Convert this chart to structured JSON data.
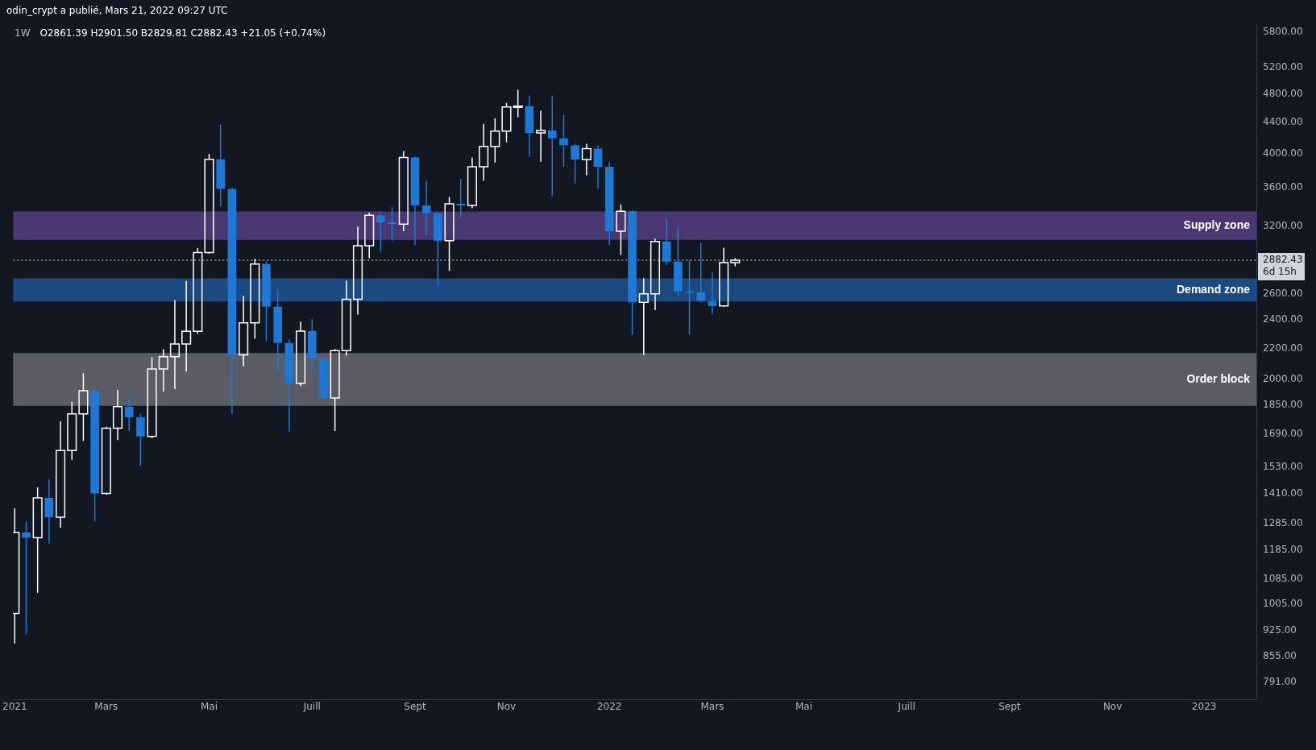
{
  "chart_data": {
    "type": "candlestick",
    "title": "1W",
    "subtitle": "O2861.39 H2901.50 B2829.81 C2882.43 +21.05 (+0.74%)",
    "annotations": [
      "odin_crypt a publié, Mars 21, 2022 09:27 UTC",
      "6d 15h"
    ],
    "x": [
      "2021-01-04",
      "2021-01-11",
      "2021-01-18",
      "2021-01-25",
      "2021-02-01",
      "2021-02-08",
      "2021-02-15",
      "2021-02-22",
      "2021-03-01",
      "2021-03-08",
      "2021-03-15",
      "2021-03-22",
      "2021-03-29",
      "2021-04-05",
      "2021-04-12",
      "2021-04-19",
      "2021-04-26",
      "2021-05-03",
      "2021-05-10",
      "2021-05-17",
      "2021-05-24",
      "2021-05-31",
      "2021-06-07",
      "2021-06-14",
      "2021-06-21",
      "2021-06-28",
      "2021-07-05",
      "2021-07-12",
      "2021-07-19",
      "2021-07-26",
      "2021-08-02",
      "2021-08-09",
      "2021-08-16",
      "2021-08-23",
      "2021-08-30",
      "2021-09-06",
      "2021-09-13",
      "2021-09-20",
      "2021-09-27",
      "2021-10-04",
      "2021-10-11",
      "2021-10-18",
      "2021-10-25",
      "2021-11-01",
      "2021-11-08",
      "2021-11-15",
      "2021-11-22",
      "2021-11-29",
      "2021-12-06",
      "2021-12-13",
      "2021-12-20",
      "2021-12-27",
      "2022-01-03",
      "2022-01-10",
      "2022-01-17",
      "2022-01-24",
      "2022-01-31",
      "2022-02-07",
      "2022-02-14",
      "2022-02-21",
      "2022-02-28",
      "2022-03-07",
      "2022-03-14",
      "2022-03-21"
    ],
    "ohlc": [
      [
        976,
        1347,
        890,
        1251
      ],
      [
        1251,
        1294,
        916,
        1231
      ],
      [
        1231,
        1436,
        1040,
        1391
      ],
      [
        1391,
        1472,
        1210,
        1311
      ],
      [
        1311,
        1759,
        1269,
        1608
      ],
      [
        1608,
        1869,
        1563,
        1800
      ],
      [
        1800,
        2038,
        1657,
        1932
      ],
      [
        1932,
        1940,
        1294,
        1410
      ],
      [
        1410,
        1730,
        1405,
        1722
      ],
      [
        1722,
        1937,
        1661,
        1840
      ],
      [
        1840,
        1889,
        1708,
        1781
      ],
      [
        1781,
        1800,
        1535,
        1679
      ],
      [
        1679,
        2141,
        1670,
        2065
      ],
      [
        2065,
        2194,
        1927,
        2145
      ],
      [
        2145,
        2551,
        1942,
        2229
      ],
      [
        2229,
        2705,
        2049,
        2318
      ],
      [
        2318,
        2993,
        2300,
        2952
      ],
      [
        2952,
        3993,
        2940,
        3928
      ],
      [
        3928,
        4372,
        3400,
        3588
      ],
      [
        3588,
        3600,
        1800,
        2157
      ],
      [
        2157,
        2585,
        2080,
        2379
      ],
      [
        2379,
        2895,
        2266,
        2849
      ],
      [
        2849,
        2870,
        2250,
        2500
      ],
      [
        2500,
        2641,
        2045,
        2237
      ],
      [
        2237,
        2262,
        1704,
        1977
      ],
      [
        1977,
        2388,
        1960,
        2320
      ],
      [
        2320,
        2406,
        2048,
        2134
      ],
      [
        2134,
        2140,
        1880,
        1889
      ],
      [
        1889,
        2195,
        1707,
        2184
      ],
      [
        2184,
        2706,
        2151,
        2557
      ],
      [
        2557,
        3195,
        2440,
        3014
      ],
      [
        3014,
        3336,
        2900,
        3308
      ],
      [
        3308,
        3345,
        2960,
        3237
      ],
      [
        3237,
        3396,
        3060,
        3220
      ],
      [
        3220,
        4030,
        3150,
        3950
      ],
      [
        3950,
        3965,
        3020,
        3409
      ],
      [
        3409,
        3680,
        3110,
        3330
      ],
      [
        3330,
        3340,
        2660,
        3060
      ],
      [
        3060,
        3500,
        2790,
        3426
      ],
      [
        3426,
        3700,
        3280,
        3410
      ],
      [
        3410,
        3950,
        3380,
        3840
      ],
      [
        3840,
        4378,
        3680,
        4086
      ],
      [
        4086,
        4455,
        3890,
        4283
      ],
      [
        4283,
        4670,
        4140,
        4612
      ],
      [
        4612,
        4860,
        4470,
        4625
      ],
      [
        4625,
        4775,
        3960,
        4260
      ],
      [
        4260,
        4560,
        3900,
        4290
      ],
      [
        4290,
        4775,
        3510,
        4190
      ],
      [
        4190,
        4500,
        3840,
        4100
      ],
      [
        4100,
        4120,
        3650,
        3925
      ],
      [
        3925,
        4120,
        3740,
        4060
      ],
      [
        4060,
        4100,
        3590,
        3840
      ],
      [
        3840,
        3900,
        3020,
        3150
      ],
      [
        3150,
        3420,
        2930,
        3350
      ],
      [
        3350,
        3360,
        2297,
        2533
      ],
      [
        2533,
        2727,
        2157,
        2600
      ],
      [
        2600,
        3080,
        2473,
        3054
      ],
      [
        3054,
        3280,
        2840,
        2870
      ],
      [
        2870,
        3195,
        2580,
        2620
      ],
      [
        2620,
        2880,
        2297,
        2612
      ],
      [
        2612,
        3040,
        2533,
        2545
      ],
      [
        2545,
        2780,
        2445,
        2505
      ],
      [
        2505,
        2995,
        2500,
        2861.39
      ],
      [
        2861.39,
        2901.5,
        2829.81,
        2882.43
      ]
    ],
    "colors": [
      "#ffffff",
      "#1e78d6",
      "#ffffff",
      "#1e78d6",
      "#ffffff",
      "#ffffff",
      "#ffffff",
      "#1e78d6",
      "#ffffff",
      "#ffffff",
      "#1e78d6",
      "#1e78d6",
      "#ffffff",
      "#ffffff",
      "#ffffff",
      "#ffffff",
      "#ffffff",
      "#ffffff",
      "#1e78d6",
      "#1e78d6",
      "#ffffff",
      "#ffffff",
      "#1e78d6",
      "#1e78d6",
      "#1e78d6",
      "#ffffff",
      "#1e78d6",
      "#1e78d6",
      "#ffffff",
      "#ffffff",
      "#ffffff",
      "#ffffff",
      "#1e78d6",
      "#1e78d6",
      "#ffffff",
      "#1e78d6",
      "#1e78d6",
      "#1e78d6",
      "#ffffff",
      "#1e78d6",
      "#ffffff",
      "#ffffff",
      "#ffffff",
      "#ffffff",
      "#ffffff",
      "#1e78d6",
      "#ffffff",
      "#1e78d6",
      "#1e78d6",
      "#1e78d6",
      "#ffffff",
      "#1e78d6",
      "#1e78d6",
      "#ffffff",
      "#1e78d6",
      "#ffffff",
      "#ffffff",
      "#1e78d6",
      "#1e78d6",
      "#1e78d6",
      "#1e78d6",
      "#1e78d6",
      "#ffffff",
      "#ffffff"
    ],
    "xlim": [
      "2021-01-03",
      "2023-02-03"
    ],
    "xticks": [
      {
        "value": "2021-01-04",
        "label": "2021"
      },
      {
        "value": "2021-03-01",
        "label": "Mars"
      },
      {
        "value": "2021-05-03",
        "label": "Mai"
      },
      {
        "value": "2021-07-05",
        "label": "Juill"
      },
      {
        "value": "2021-09-06",
        "label": "Sept"
      },
      {
        "value": "2021-11-01",
        "label": "Nov"
      },
      {
        "value": "2022-01-03",
        "label": "2022"
      },
      {
        "value": "2022-03-07",
        "label": "Mars"
      },
      {
        "value": "2022-05-02",
        "label": "Mai"
      },
      {
        "value": "2022-07-04",
        "label": "Juill"
      },
      {
        "value": "2022-09-05",
        "label": "Sept"
      },
      {
        "value": "2022-11-07",
        "label": "Nov"
      },
      {
        "value": "2023-01-02",
        "label": "2023"
      }
    ],
    "ylim": [
      750,
      5960
    ],
    "yticks": [
      {
        "value": 791,
        "label": "791.00"
      },
      {
        "value": 855,
        "label": "855.00"
      },
      {
        "value": 925,
        "label": "925.00"
      },
      {
        "value": 1005,
        "label": "1005.00"
      },
      {
        "value": 1085,
        "label": "1085.00"
      },
      {
        "value": 1185,
        "label": "1185.00"
      },
      {
        "value": 1285,
        "label": "1285.00"
      },
      {
        "value": 1410,
        "label": "1410.00"
      },
      {
        "value": 1530,
        "label": "1530.00"
      },
      {
        "value": 1690,
        "label": "1690.00"
      },
      {
        "value": 1850,
        "label": "1850.00"
      },
      {
        "value": 2000,
        "label": "2000.00"
      },
      {
        "value": 2200,
        "label": "2200.00"
      },
      {
        "value": 2400,
        "label": "2400.00"
      },
      {
        "value": 2600,
        "label": "2600.00"
      },
      {
        "value": 3200,
        "label": "3200.00"
      },
      {
        "value": 3600,
        "label": "3600.00"
      },
      {
        "value": 4000,
        "label": "4000.00"
      },
      {
        "value": 4400,
        "label": "4400.00"
      },
      {
        "value": 4800,
        "label": "4800.00"
      },
      {
        "value": 5200,
        "label": "5200.00"
      },
      {
        "value": 5800,
        "label": "5800.00"
      }
    ],
    "log": true,
    "bands": [
      {
        "axis": "y",
        "from": 3068,
        "to": 3348,
        "label": "Supply zone",
        "color": "#4a3873"
      },
      {
        "axis": "y",
        "from": 2540,
        "to": 2727,
        "label": "Demand zone",
        "color": "#1c4a80"
      },
      {
        "axis": "y",
        "from": 1845,
        "to": 2168,
        "label": "Order block",
        "color": "#5a5d66"
      }
    ],
    "ref_lines": [
      {
        "axis": "y",
        "value": 2882.43,
        "label": "2882.43",
        "color": "#d1d4dc",
        "line_style": "dotted"
      }
    ]
  }
}
